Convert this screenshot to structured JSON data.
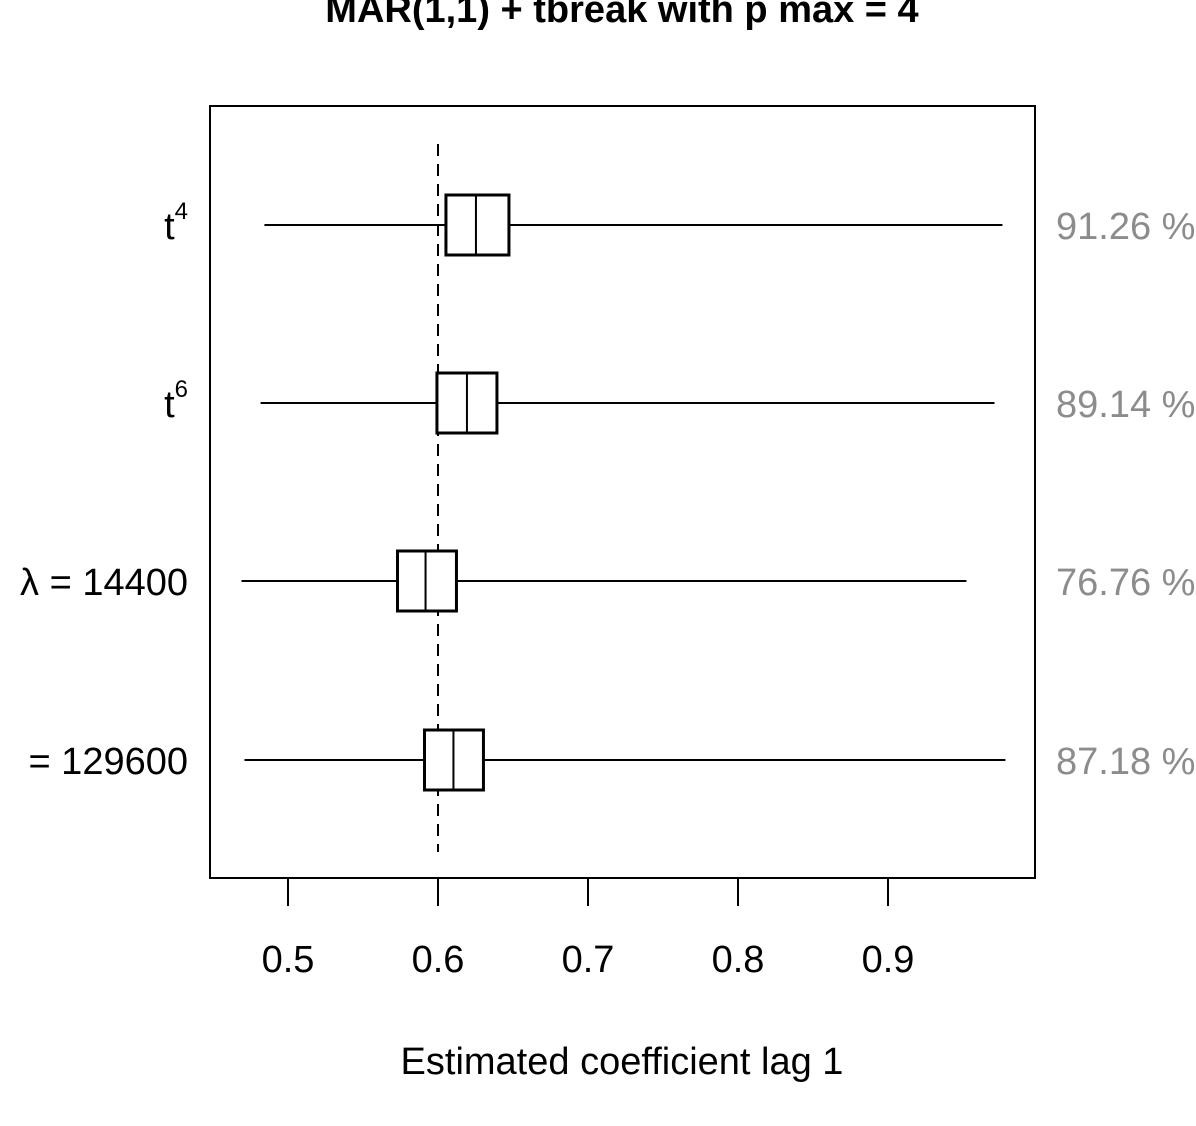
{
  "chart_data": {
    "type": "forest",
    "title": "MAR(1,1) + tbreak with p max = 4",
    "xlabel": "Estimated coefficient lag 1",
    "xlim": [
      0.448,
      0.998
    ],
    "xticks": [
      0.5,
      0.6,
      0.7,
      0.8,
      0.9
    ],
    "xtick_labels": [
      "0.5",
      "0.6",
      "0.7",
      "0.8",
      "0.9"
    ],
    "reference_value": 0.6,
    "reference_style": "dashed",
    "grid": false,
    "rows": [
      {
        "label_base": "t",
        "label_sup": "4",
        "estimate": 0.6253,
        "lower": 0.4843,
        "upper": 0.9763,
        "box_low": 0.6053,
        "box_high": 0.6473,
        "percent": "91.26 %"
      },
      {
        "label_base": "t",
        "label_sup": "6",
        "estimate": 0.6193,
        "lower": 0.4817,
        "upper": 0.971,
        "box_low": 0.5993,
        "box_high": 0.6393,
        "percent": "89.14 %"
      },
      {
        "label_base": "λ = 14400",
        "label_sup": "",
        "estimate": 0.5917,
        "lower": 0.469,
        "upper": 0.9523,
        "box_low": 0.573,
        "box_high": 0.6123,
        "percent": "76.76 %"
      },
      {
        "label_base": "= 129600",
        "label_sup": "",
        "estimate": 0.6103,
        "lower": 0.471,
        "upper": 0.9783,
        "box_low": 0.591,
        "box_high": 0.6303,
        "percent": "87.18 %"
      }
    ]
  }
}
